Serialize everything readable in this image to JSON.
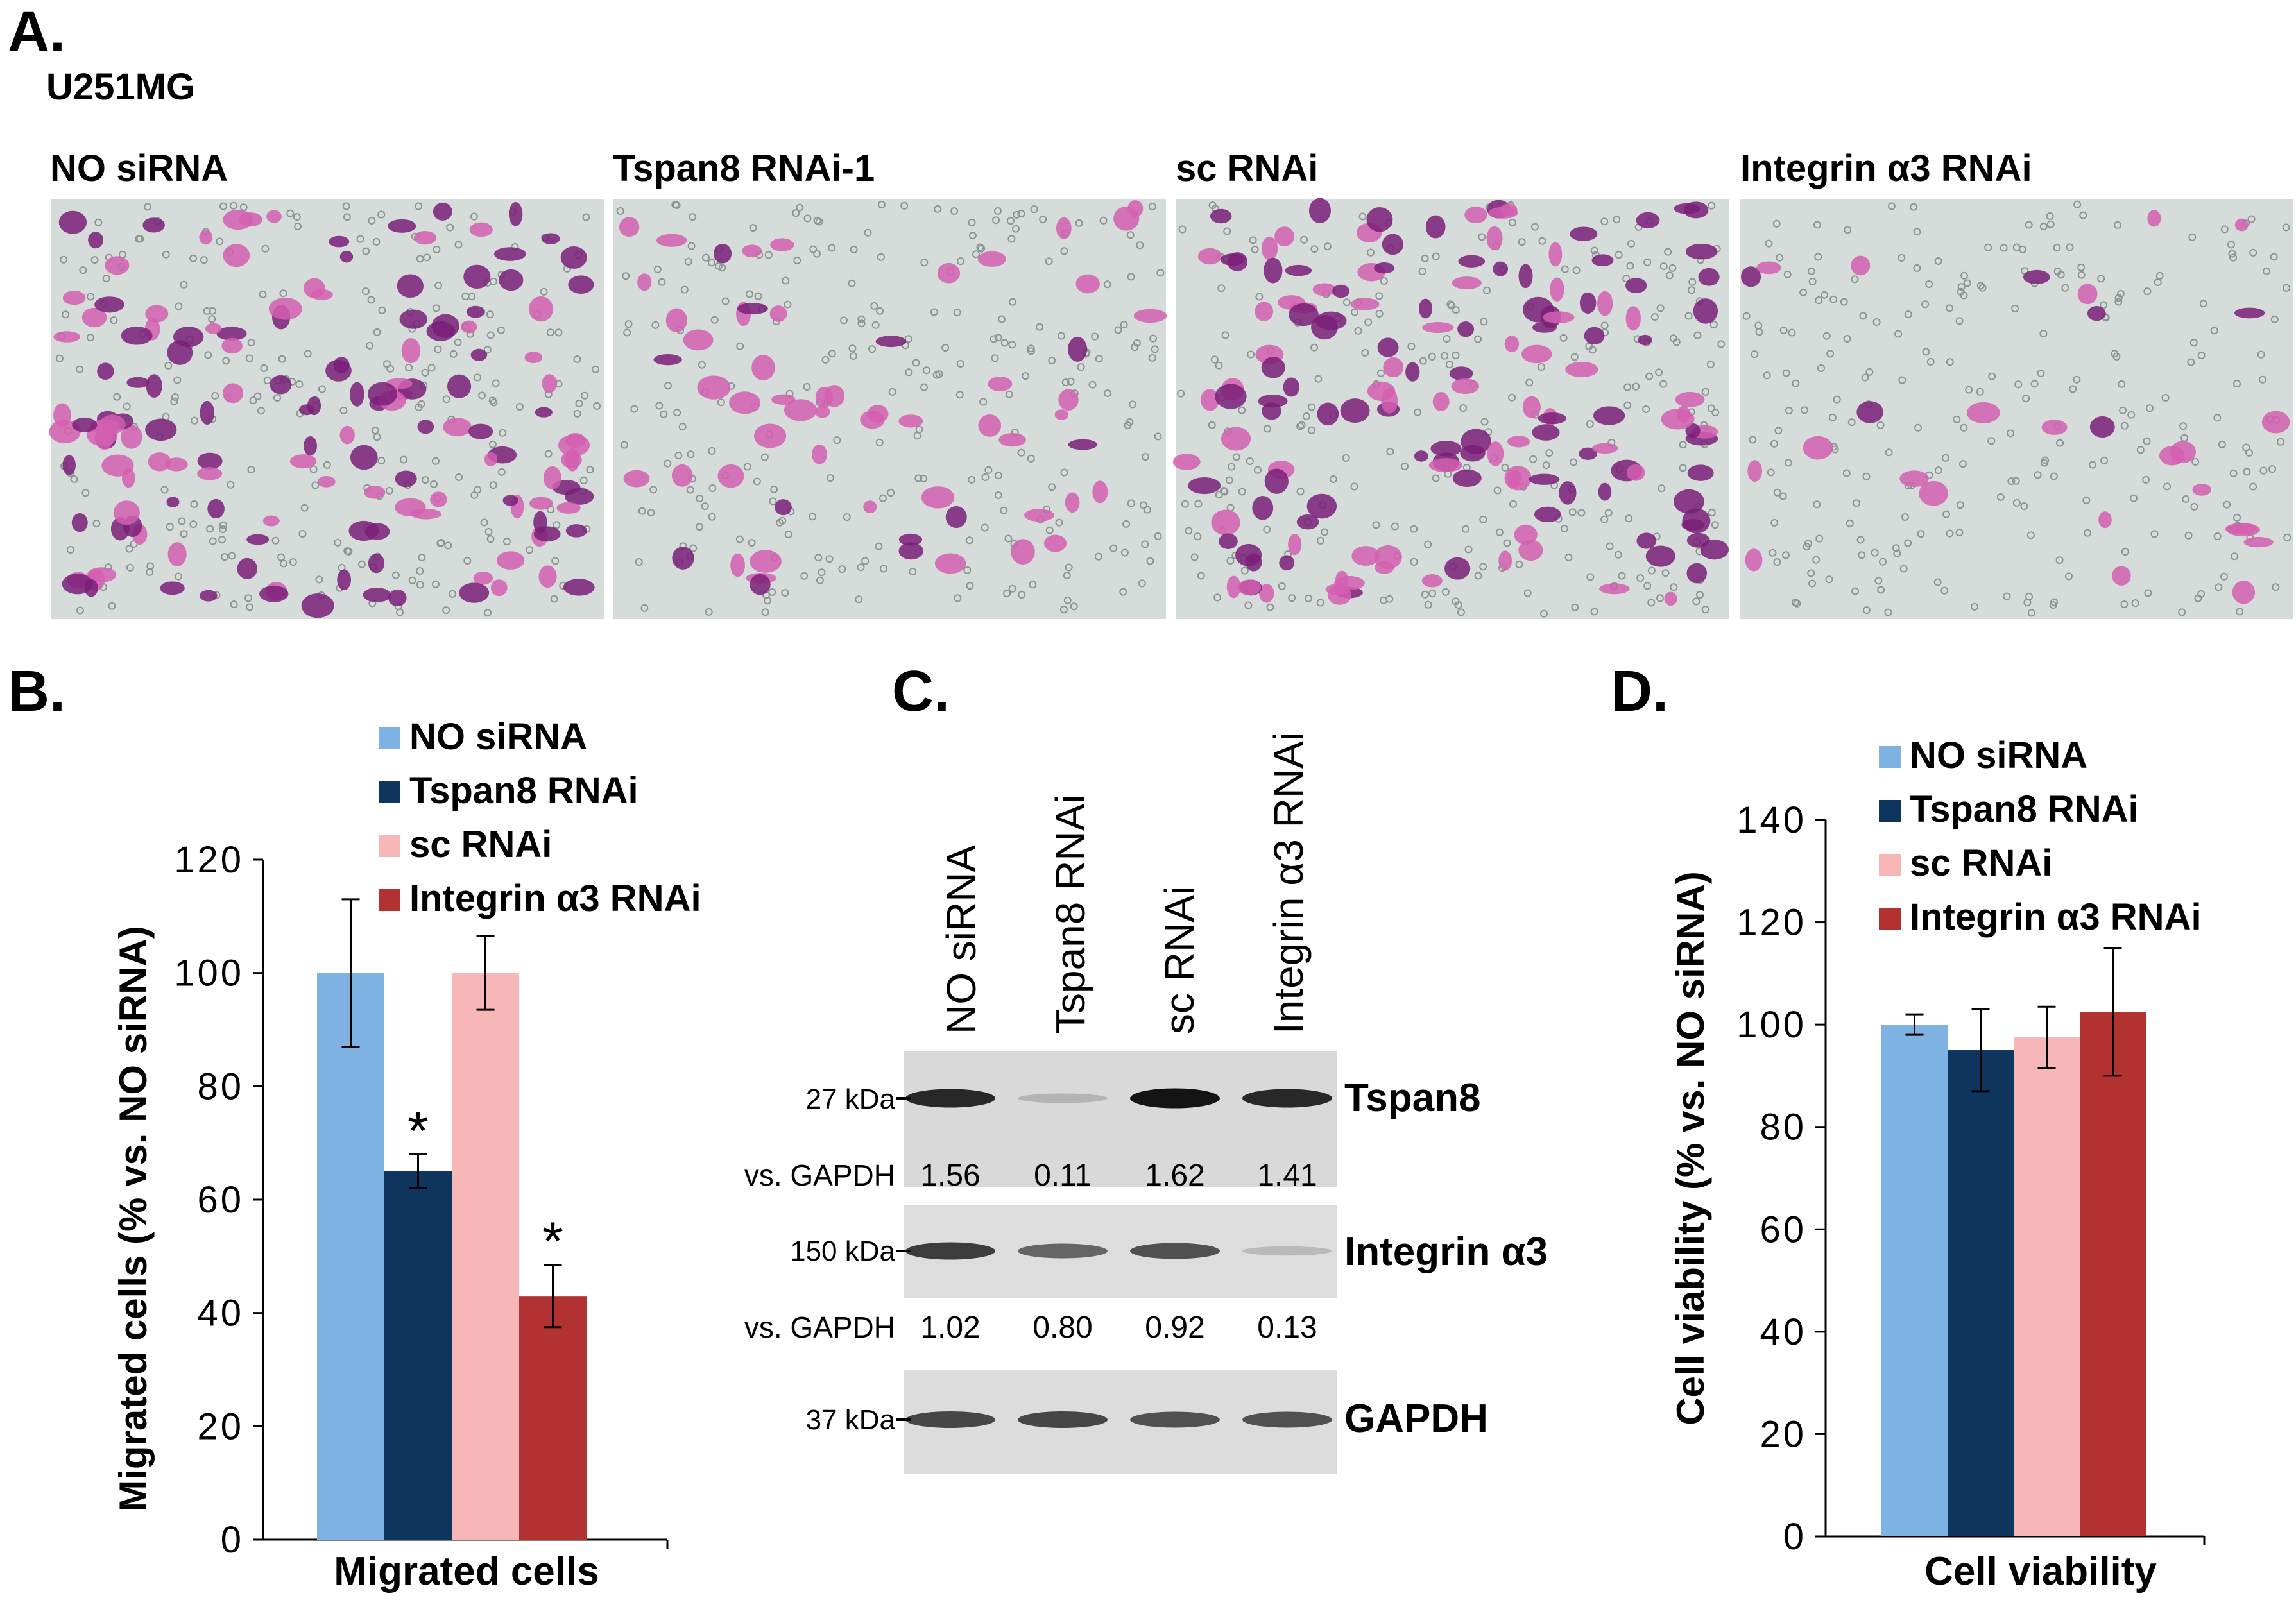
{
  "panel_a": {
    "letter": "A.",
    "cell_line": "U251MG",
    "micrographs": [
      {
        "label": "NO siRNA",
        "cell_density": "high"
      },
      {
        "label": "Tspan8 RNAi-1",
        "cell_density": "low"
      },
      {
        "label": "sc RNAi",
        "cell_density": "high"
      },
      {
        "label": "Integrin α3 RNAi",
        "cell_density": "very low"
      }
    ],
    "colors": {
      "stain_dark": "#7a1f78",
      "stain_light": "#d45fb0",
      "background": "#d5dcda",
      "pores": "#8a9490"
    }
  },
  "panel_b": {
    "letter": "B."
  },
  "panel_c": {
    "letter": "C.",
    "lanes": [
      "NO siRNA",
      "Tspan8 RNAi",
      "sc RNAi",
      "Integrin α3 RNAi"
    ],
    "blots": [
      {
        "marker": "27 kDa",
        "protein": "Tspan8",
        "intensity": [
          0.85,
          0.15,
          0.95,
          0.85
        ]
      },
      {
        "marker": "150 kDa",
        "protein": "Integrin α3",
        "intensity": [
          0.75,
          0.55,
          0.65,
          0.12
        ]
      },
      {
        "marker": "37 kDa",
        "protein": "GAPDH",
        "intensity": [
          0.7,
          0.7,
          0.65,
          0.65
        ]
      }
    ],
    "quant": [
      {
        "label": "vs. GAPDH",
        "values": [
          "1.56",
          "0.11",
          "1.62",
          "1.41"
        ]
      },
      {
        "label": "vs. GAPDH",
        "values": [
          "1.02",
          "0.80",
          "0.92",
          "0.13"
        ]
      }
    ]
  },
  "panel_d": {
    "letter": "D."
  },
  "chart_data": [
    {
      "type": "bar",
      "panel": "B.",
      "xlabel": "Migrated cells",
      "ylabel": "Migrated cells (% vs. NO siRNA)",
      "categories": [
        "Migrated cells"
      ],
      "ylim": [
        0,
        120
      ],
      "yticks": [
        0,
        20,
        40,
        60,
        80,
        100,
        120
      ],
      "series": [
        {
          "name": "NO siRNA",
          "values": [
            100
          ],
          "error": [
            13
          ],
          "color": "#7eb2e3"
        },
        {
          "name": "Tspan8 RNAi",
          "values": [
            65
          ],
          "error": [
            3
          ],
          "color": "#0e355e",
          "annotation": "*"
        },
        {
          "name": "sc RNAi",
          "values": [
            100
          ],
          "error": [
            6.5
          ],
          "color": "#f6b7b6"
        },
        {
          "name": "Integrin α3 RNAi",
          "values": [
            43
          ],
          "error": [
            5.5
          ],
          "color": "#b23232",
          "annotation": "*"
        }
      ],
      "legend": "top-right",
      "grid": false
    },
    {
      "type": "bar",
      "panel": "D.",
      "xlabel": "Cell viability",
      "ylabel": "Cell viability (% vs. NO siRNA)",
      "categories": [
        "Cell viability"
      ],
      "ylim": [
        0,
        140
      ],
      "yticks": [
        0,
        20,
        40,
        60,
        80,
        100,
        120,
        140
      ],
      "series": [
        {
          "name": "NO siRNA",
          "values": [
            100
          ],
          "error": [
            2
          ],
          "color": "#7eb2e3"
        },
        {
          "name": "Tspan8 RNAi",
          "values": [
            95
          ],
          "error": [
            8
          ],
          "color": "#0e355e"
        },
        {
          "name": "sc RNAi",
          "values": [
            97.5
          ],
          "error": [
            6
          ],
          "color": "#f6b7b6"
        },
        {
          "name": "Integrin α3 RNAi",
          "values": [
            102.5
          ],
          "error": [
            12.5
          ],
          "color": "#b23232"
        }
      ],
      "legend": "top",
      "grid": false
    }
  ]
}
